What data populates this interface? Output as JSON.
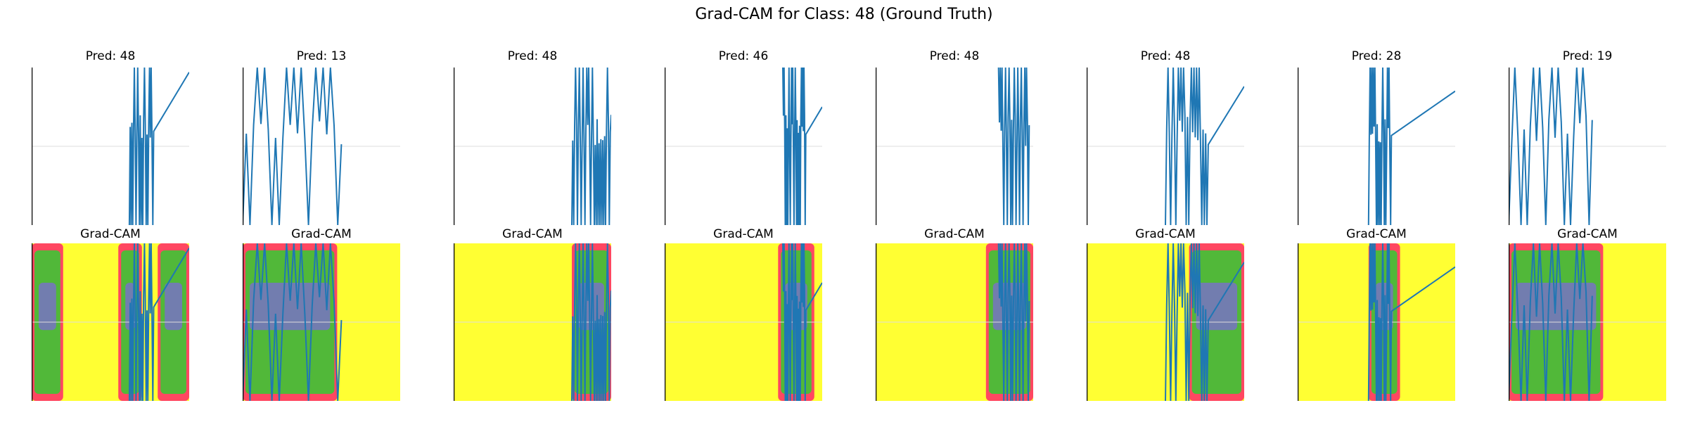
{
  "title": "Grad-CAM for Class: 48 (Ground Truth)",
  "top_row_titles": [
    "Pred: 48",
    "Pred: 13",
    "Pred: 48",
    "Pred: 46",
    "Pred: 48",
    "Pred: 48",
    "Pred: 28",
    "Pred: 19"
  ],
  "bottom_row_title": "Grad-CAM",
  "colors": {
    "line": "#1f77b4",
    "heat_background": "#ffff33",
    "heat_edge": "#ff3366",
    "heat_mid": "#33cc33",
    "heat_core": "#8855ff",
    "axis": "#000000",
    "grid": "#dddddd"
  },
  "chart_data": {
    "type": "line",
    "description": "8 columns x 2 rows; top row: line plot of a signal per sample with predicted class; bottom row: same signal overlaid on a Grad-CAM heatmap",
    "grid": true,
    "samples": [
      {
        "pred": 48,
        "heat": [
          [
            0.0,
            0.2
          ],
          [
            0.55,
            0.7
          ],
          [
            0.8,
            1.0
          ]
        ]
      },
      {
        "pred": 13,
        "heat": [
          [
            0.0,
            0.6
          ]
        ]
      },
      {
        "pred": 48,
        "heat": [
          [
            0.75,
            1.0
          ]
        ]
      },
      {
        "pred": 46,
        "heat": [
          [
            0.72,
            0.95
          ]
        ]
      },
      {
        "pred": 48,
        "heat": [
          [
            0.7,
            1.0
          ]
        ]
      },
      {
        "pred": 48,
        "heat": [
          [
            0.65,
            1.0
          ]
        ]
      },
      {
        "pred": 28,
        "heat": [
          [
            0.45,
            0.65
          ]
        ]
      },
      {
        "pred": 19,
        "heat": [
          [
            0.0,
            0.6
          ]
        ]
      }
    ]
  }
}
